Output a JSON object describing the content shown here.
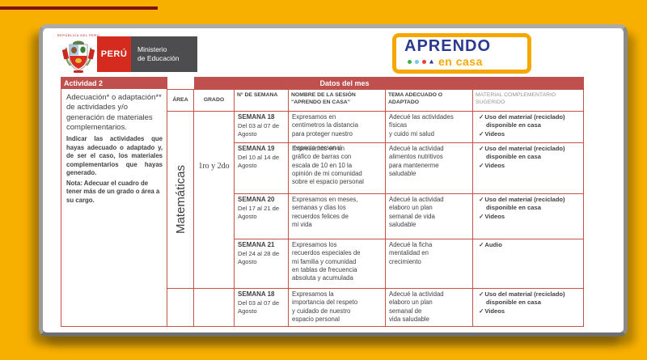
{
  "page": {
    "background": "#F8B000",
    "top_line_color": "#7B1416"
  },
  "header": {
    "republic_label": "REPÚBLICA DEL PERÚ",
    "country_label": "PERÚ",
    "ministry_lines": [
      "Ministerio",
      "de Educación"
    ],
    "brand": {
      "title": "APRENDO",
      "subtitle": "en casa",
      "title_color": "#2B3990",
      "subtitle_color": "#F7A800",
      "dots": [
        {
          "shape": "circle",
          "color": "#3BB54A"
        },
        {
          "shape": "circle",
          "color": "#7AC7E8"
        },
        {
          "shape": "circle",
          "color": "#EF4136"
        },
        {
          "shape": "triangle",
          "color": "#2B3990"
        }
      ]
    }
  },
  "table": {
    "accent_red": "#C0504D",
    "activity_label": "Actividad 2",
    "data_label": "Datos del mes",
    "check_mark": "✓",
    "left_note": {
      "p1": "Adecuación* o adaptación**\nde actividades y/o\ngeneración de materiales\ncomplementarios.",
      "p2": "Indicar las actividades que hayas adecuado o adaptado y, de ser el caso, los materiales complementarios que hayas generado.",
      "p3": "Nota: Adecuar el cuadro de tener más de un grado o área a su cargo."
    },
    "columns": {
      "area": "ÁREA",
      "grade": "GRADO",
      "week": "N° DE SEMANA",
      "session": "NOMBRE DE LA SESIÓN \"APRENDO EN CASA\"",
      "theme": "TEMA ADECUADO O ADAPTADO",
      "material": "MATERIAL COMPLEMENTARIO SUGERIDO"
    },
    "area": "Matemáticas",
    "grade": "1ro y 2do",
    "rows": [
      {
        "week": "SEMANA 18",
        "dates": "Del 03 al 07 de\nAgosto",
        "session": "Expresamos en\ncentímetros la distancia\npara proteger nuestro",
        "theme": "Adecué las actividades\nfísicas\ny cuido mi salud",
        "materials": [
          "Uso del material (reciclado) disponible en casa",
          "Videos"
        ]
      },
      {
        "week": "SEMANA 19",
        "dates": "Del 10 al 14 de\nAgosto",
        "session": "Expresamos en un\ngráfico de barras con\nescala de 10 en 10 la\nopinión de mi comunidad\nsobre el espacio personal",
        "session_overlap": "espacio personal",
        "theme": "Adecué la actividad\nalimentos nutritivos\npara mantenerme\nsaludable",
        "materials": [
          "Uso del material (reciclado) disponible en casa",
          "Videos"
        ]
      },
      {
        "week": "SEMANA 20",
        "dates": "Del 17 al 21 de\nAgosto",
        "session": "Expresamos en meses,\nsemanas y días los\nrecuerdos felices de\nmi vida",
        "theme": "Adecué la actividad\nelaboro un plan\nsemanal de vida\nsaludable",
        "materials": [
          "Uso del material (reciclado) disponible en casa",
          "Videos"
        ]
      },
      {
        "week": "SEMANA 21",
        "dates": "Del 24 al 28 de\nAgosto",
        "session": "Expresamos los\nrecuerdos especiales de\nmi familia y comunidad\nen tablas de frecuencia\nabsoluta y acumulada",
        "theme": "Adecué la ficha\nmentalidad en\ncrecimiento",
        "materials": [
          "Audio"
        ]
      },
      {
        "week": "SEMANA 18",
        "dates": "Del 03 al 07 de\nAgosto",
        "session": "Expresamos la\nimportancia del respeto\ny cuidado de nuestro\nespacio personal",
        "theme": "Adecué la actividad\nelaboro un plan\nsemanal de\nvida saludable",
        "materials": [
          "Uso del material (reciclado) disponible en casa",
          "Videos"
        ]
      }
    ]
  }
}
